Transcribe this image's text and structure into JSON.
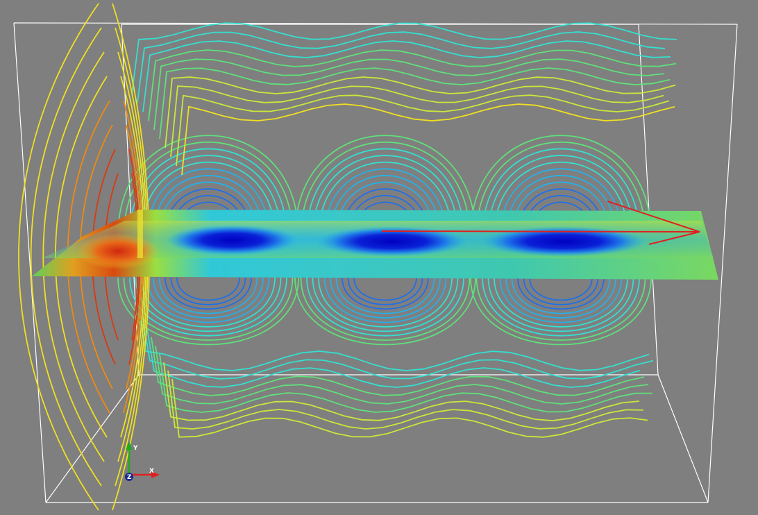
{
  "view": {
    "background": "#7f7f7f",
    "bounding_box_color": "#ffffff",
    "flow_direction_arrow_color": "#e02020"
  },
  "orientation_axes": {
    "x": {
      "label": "X",
      "color": "#e02020"
    },
    "y": {
      "label": "Y",
      "color": "#22aa22"
    },
    "z": {
      "label": "Z",
      "color": "#1a2a8a"
    }
  },
  "colormap": [
    "#0000c8",
    "#1f6fe8",
    "#27b0e6",
    "#33e0d0",
    "#5fe07a",
    "#c8e83a",
    "#f0e020",
    "#f08a10",
    "#d83a10"
  ],
  "vortices": 3
}
